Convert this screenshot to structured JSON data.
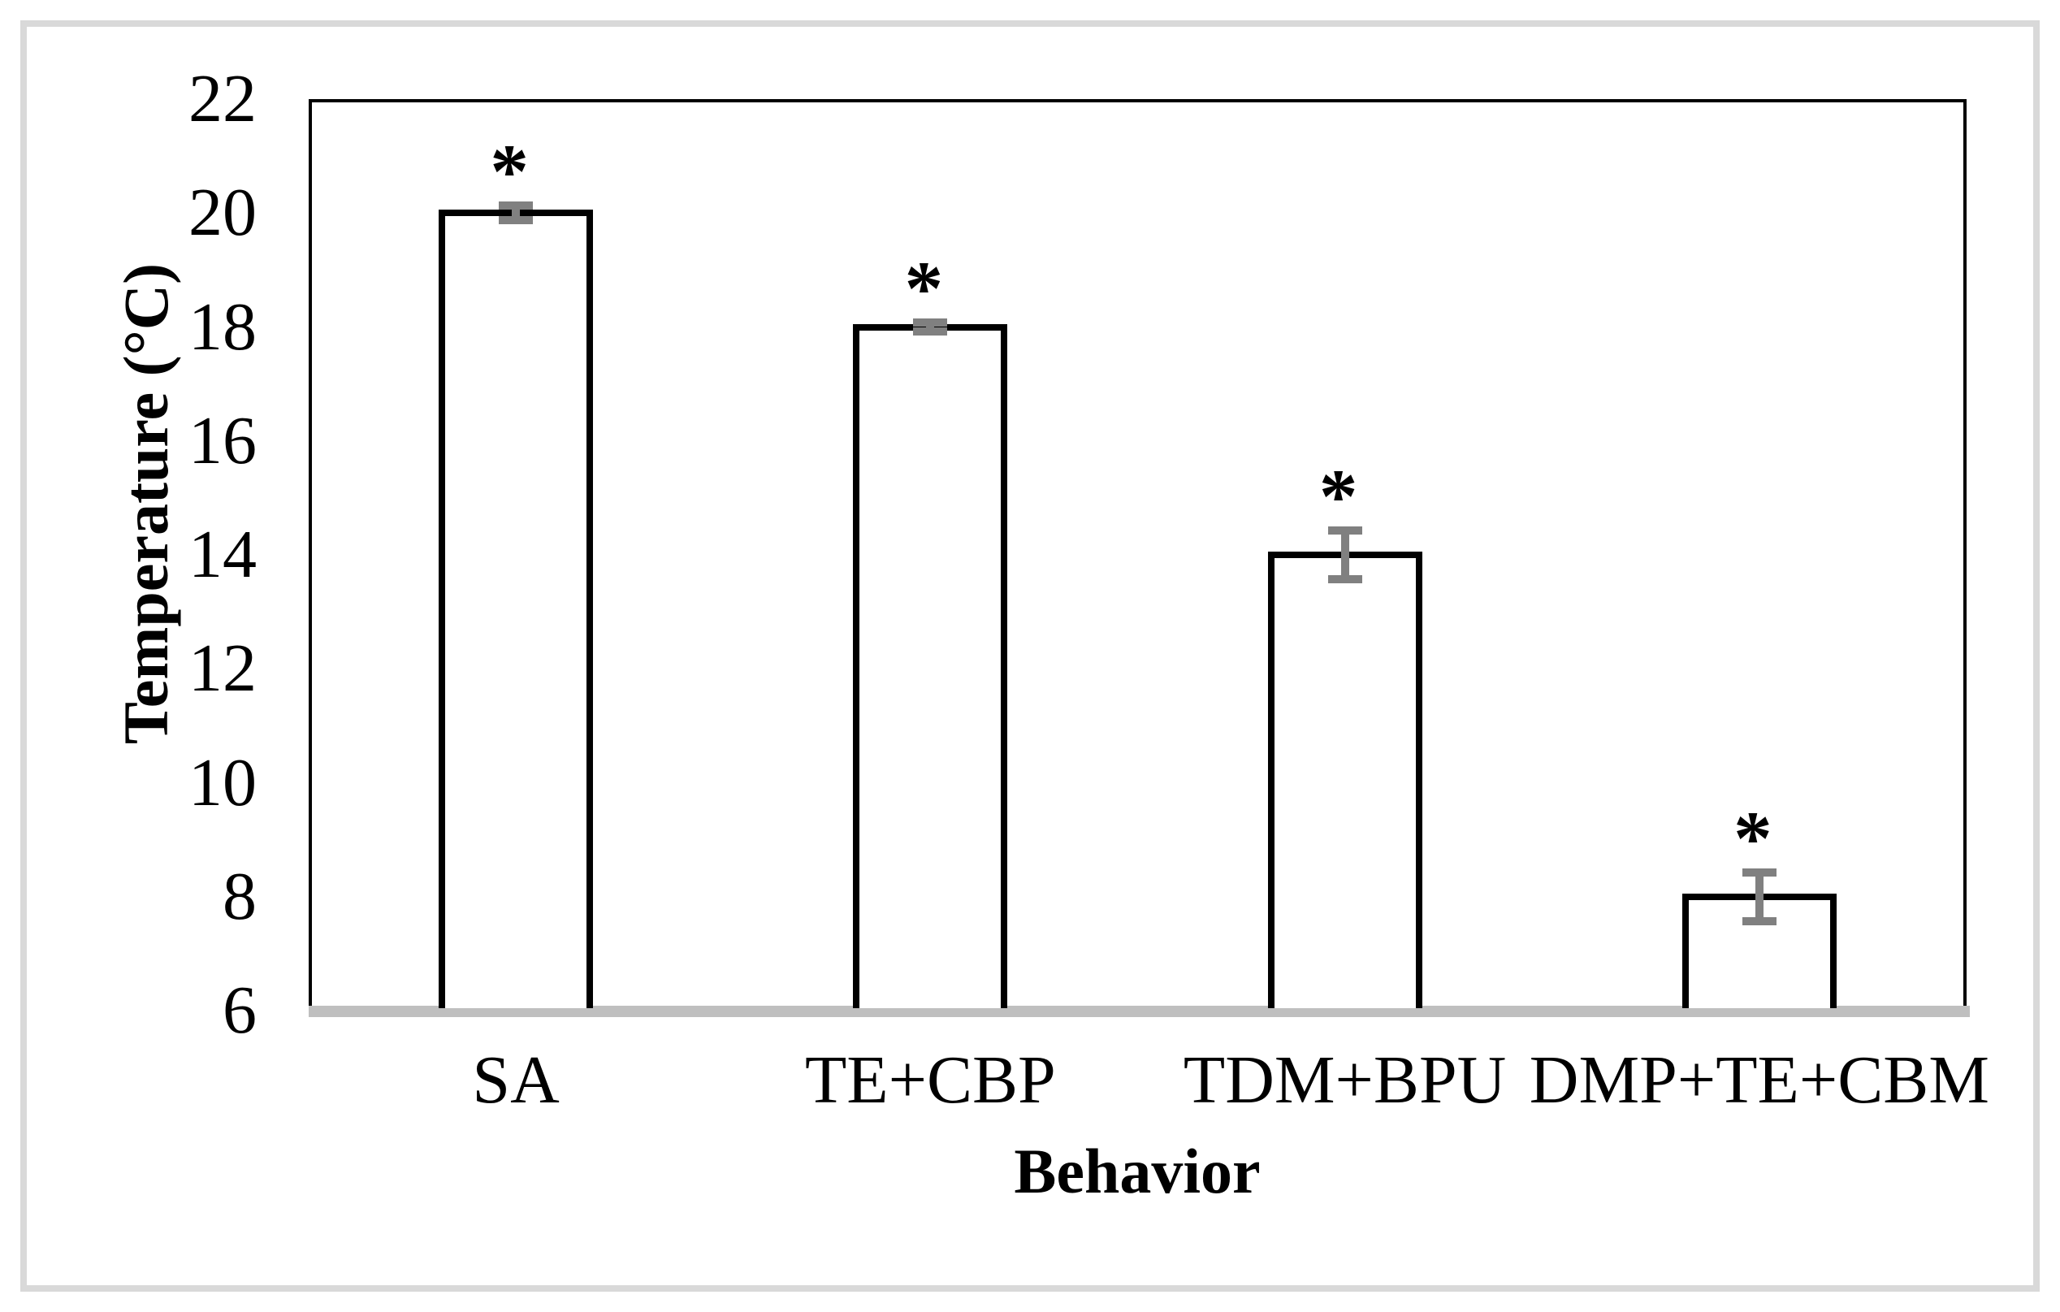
{
  "figure": {
    "background_color": "#FFFFFF",
    "outer_frame_color": "#D9D9D9"
  },
  "chart_data": {
    "type": "bar",
    "title": "",
    "xlabel": "Behavior",
    "ylabel": "Temperature (°C)",
    "categories": [
      "SA",
      "TE+CBP",
      "TDM+BPU",
      "DMP+TE+CBM"
    ],
    "values": [
      20,
      18,
      14,
      8
    ],
    "error_bars": [
      0.2,
      0.15,
      0.5,
      0.5
    ],
    "significance_markers": [
      "*",
      "*",
      "*",
      "*"
    ],
    "ylim": [
      6,
      22
    ],
    "yticks": [
      22,
      20,
      18,
      16,
      14,
      12,
      10,
      8,
      6
    ],
    "grid": false,
    "legend": false,
    "bar_fill_color": "#FFFFFF",
    "bar_border_color": "#000000",
    "error_bar_color": "#808080",
    "axis_line_color": "#BFBFBF"
  }
}
